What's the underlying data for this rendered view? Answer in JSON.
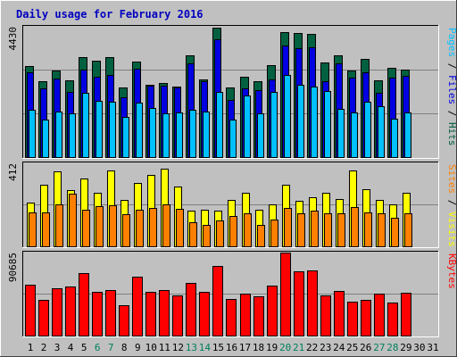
{
  "chart_data": {
    "type": "bar",
    "title": "Daily usage for February 2016",
    "days": [
      "1",
      "2",
      "3",
      "4",
      "5",
      "6",
      "7",
      "8",
      "9",
      "10",
      "11",
      "12",
      "13",
      "14",
      "15",
      "16",
      "17",
      "18",
      "19",
      "20",
      "21",
      "22",
      "23",
      "24",
      "25",
      "26",
      "27",
      "28",
      "29",
      "30",
      "31"
    ],
    "weekend_days": [
      "6",
      "7",
      "13",
      "14",
      "20",
      "21",
      "27",
      "28"
    ],
    "colors": {
      "hits": "#006040",
      "files": "#0000e0",
      "pages": "#00c0ff",
      "visits": "#ffff00",
      "sites": "#ff8000",
      "kbytes": "#ff0000",
      "panel_bg": "#c0c0c0",
      "grid": "#808080",
      "weekday_label": "#000000",
      "weekend_label": "#00805c",
      "title": "#0000c0"
    },
    "panels": [
      {
        "id": "hits-files-pages",
        "ymax_label": "4430",
        "ymax": 4430,
        "legend": [
          {
            "text": "Pages",
            "color": "#00c0ff"
          },
          {
            "text": " / ",
            "color": "#000000"
          },
          {
            "text": "Files",
            "color": "#0000e0"
          },
          {
            "text": " / ",
            "color": "#000000"
          },
          {
            "text": "Hits",
            "color": "#006040"
          }
        ],
        "series": [
          {
            "name": "Hits",
            "color": "#006040",
            "values": [
              3100,
              2570,
              2930,
              2600,
              3410,
              3280,
              3390,
              2380,
              3260,
              2470,
              2530,
              2410,
              3460,
              2640,
              4400,
              2380,
              2730,
              2590,
              3120,
              4250,
              4220,
              4180,
              3220,
              3460,
              2940,
              3340,
              2610,
              3020,
              2980
            ]
          },
          {
            "name": "Files",
            "color": "#0000e0",
            "values": [
              2870,
              2340,
              2660,
              2200,
              2980,
              2740,
              2800,
              2040,
              3000,
              2430,
              2440,
              2370,
              3190,
              2580,
              4000,
              1950,
              2350,
              2280,
              2640,
              3780,
              3700,
              3720,
              2590,
              3180,
              2710,
              2890,
              2190,
              2700,
              2750
            ]
          },
          {
            "name": "Pages",
            "color": "#00c0ff",
            "values": [
              1620,
              1280,
              1550,
              1490,
              2180,
              1920,
              1870,
              1360,
              1850,
              1680,
              1480,
              1510,
              1620,
              1560,
              2200,
              1270,
              2080,
              1490,
              2200,
              2800,
              2460,
              2410,
              2250,
              1640,
              1510,
              1870,
              1730,
              1310,
              1520
            ]
          }
        ]
      },
      {
        "id": "visits-sites",
        "ymax_label": "412",
        "ymax": 412,
        "legend": [
          {
            "text": "Sites",
            "color": "#ff8000"
          },
          {
            "text": " / ",
            "color": "#000000"
          },
          {
            "text": "Visits",
            "color": "#ffff00"
          }
        ],
        "series": [
          {
            "name": "Visits",
            "color": "#ffff00",
            "values": [
              215,
              305,
              370,
              280,
              335,
              265,
              375,
              230,
              315,
              355,
              385,
              295,
              175,
              180,
              175,
              230,
              265,
              180,
              210,
              305,
              225,
              245,
              265,
              235,
              375,
              285,
              230,
              210,
              265
            ]
          },
          {
            "name": "Sites",
            "color": "#ff8000",
            "values": [
              170,
              170,
              210,
              260,
              180,
              200,
              205,
              160,
              180,
              190,
              210,
              185,
              120,
              105,
              130,
              150,
              165,
              105,
              135,
              190,
              165,
              175,
              165,
              165,
              195,
              170,
              165,
              140,
              165
            ]
          }
        ]
      },
      {
        "id": "kbytes",
        "ymax_label": "90685",
        "ymax": 90685,
        "legend": [
          {
            "text": "KBytes",
            "color": "#ff0000"
          }
        ],
        "series": [
          {
            "name": "KBytes",
            "color": "#ff0000",
            "values": [
              56000,
              39000,
              52000,
              54000,
              68000,
              48000,
              50000,
              33000,
              64000,
              48000,
              50000,
              44000,
              58000,
              48000,
              76000,
              40000,
              46000,
              43000,
              55000,
              90685,
              70000,
              71000,
              44000,
              49000,
              37000,
              39000,
              46000,
              36000,
              47000
            ]
          }
        ]
      }
    ]
  }
}
